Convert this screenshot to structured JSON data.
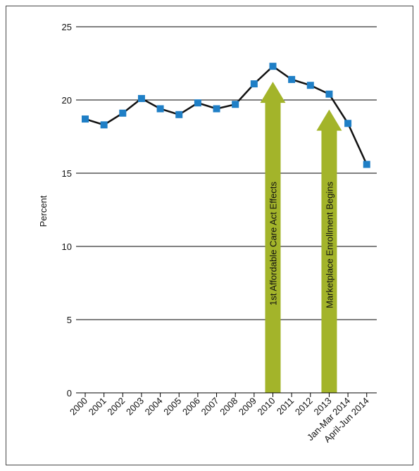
{
  "chart_data": {
    "type": "line",
    "y_label": "Percent",
    "categories": [
      "2000",
      "2001",
      "2002",
      "2003",
      "2004",
      "2005",
      "2006",
      "2007",
      "2008",
      "2009",
      "2010",
      "2011",
      "2012",
      "2013",
      "Jan-Mar 2014",
      "April-Jun 2014"
    ],
    "series": [
      {
        "color": "#1f7fc6",
        "values": [
          18.7,
          18.3,
          19.1,
          20.1,
          19.4,
          19.0,
          19.8,
          19.4,
          19.7,
          21.1,
          22.3,
          21.4,
          21.0,
          20.4,
          18.4,
          15.6
        ]
      }
    ],
    "ylim": [
      0,
      25
    ],
    "yticks": [
      0,
      5,
      10,
      15,
      20,
      25
    ],
    "grid": true,
    "annotations": [
      {
        "text": "1st Affordable Care Act Effects",
        "category": "2010"
      },
      {
        "text": "Marketplace Enrollment Begins",
        "category": "2013"
      }
    ],
    "annotation_color": "#a3b42a"
  }
}
